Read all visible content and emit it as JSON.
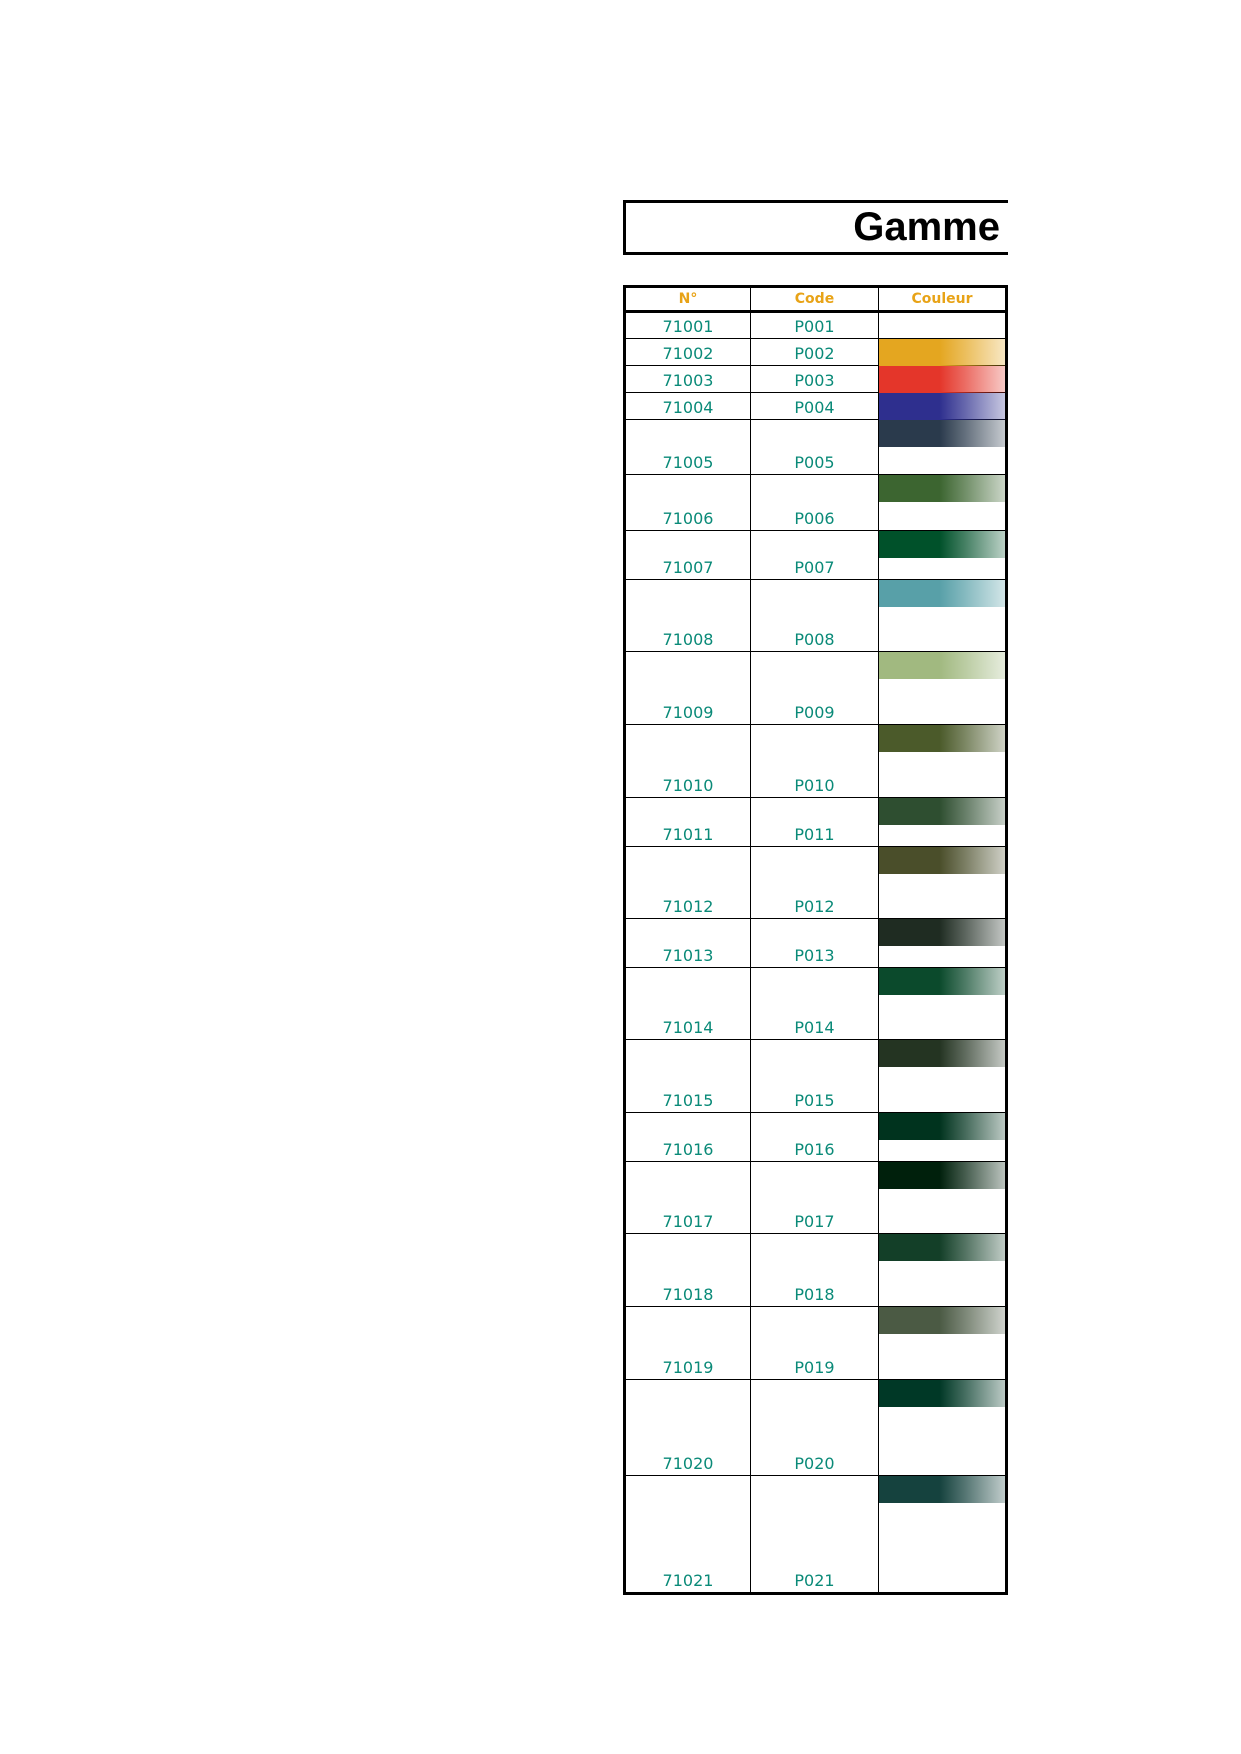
{
  "title": "Gamme",
  "headers": {
    "num": "N°",
    "code": "Code",
    "color": "Couleur"
  },
  "rows": [
    {
      "num": "71001",
      "code": "P001",
      "color": null
    },
    {
      "num": "71002",
      "code": "P002",
      "color": "#e4a620"
    },
    {
      "num": "71003",
      "code": "P003",
      "color": "#e4362a"
    },
    {
      "num": "71004",
      "code": "P004",
      "color": "#2e2f8e"
    },
    {
      "num": "71005",
      "code": "P005",
      "color": "#2a3a4c"
    },
    {
      "num": "71006",
      "code": "P006",
      "color": "#3c6530"
    },
    {
      "num": "71007",
      "code": "P007",
      "color": "#00512a"
    },
    {
      "num": "71008",
      "code": "P008",
      "color": "#58a0a8"
    },
    {
      "num": "71009",
      "code": "P009",
      "color": "#a1b980"
    },
    {
      "num": "71010",
      "code": "P010",
      "color": "#4b5a2a"
    },
    {
      "num": "71011",
      "code": "P011",
      "color": "#2e4e30"
    },
    {
      "num": "71012",
      "code": "P012",
      "color": "#4a4e2a"
    },
    {
      "num": "71013",
      "code": "P013",
      "color": "#1f2c22"
    },
    {
      "num": "71014",
      "code": "P014",
      "color": "#0b4a2c"
    },
    {
      "num": "71015",
      "code": "P015",
      "color": "#243422"
    },
    {
      "num": "71016",
      "code": "P016",
      "color": "#00331e"
    },
    {
      "num": "71017",
      "code": "P017",
      "color": "#00200c"
    },
    {
      "num": "71018",
      "code": "P018",
      "color": "#133f28"
    },
    {
      "num": "71019",
      "code": "P019",
      "color": "#4b5a44"
    },
    {
      "num": "71020",
      "code": "P020",
      "color": "#003826"
    },
    {
      "num": "71021",
      "code": "P021",
      "color": "#15423e"
    }
  ]
}
